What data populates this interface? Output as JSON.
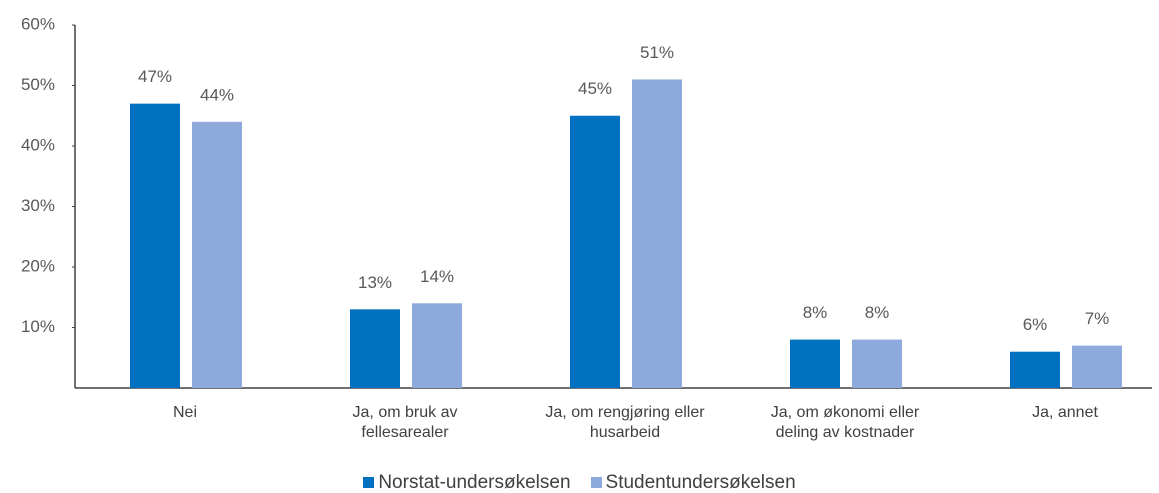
{
  "chart_data": {
    "type": "bar",
    "categories": [
      "Nei",
      "Ja, om bruk av\nfellesarealer",
      "Ja, om rengjøring eller\nhusarbeid",
      "Ja, om økonomi eller\ndeling av kostnader",
      "Ja, annet"
    ],
    "series": [
      {
        "name": "Norstat-undersøkelsen",
        "color": "#0070c0",
        "values": [
          47,
          13,
          45,
          8,
          6
        ],
        "value_labels": [
          "47%",
          "13%",
          "45%",
          "8%",
          "6%"
        ]
      },
      {
        "name": "Studentundersøkelsen",
        "color": "#8eaadc",
        "values": [
          44,
          14,
          51,
          8,
          7
        ],
        "value_labels": [
          "44%",
          "14%",
          "51%",
          "8%",
          "7%"
        ]
      }
    ],
    "ylim": [
      0,
      60
    ],
    "yticks": [
      {
        "value": 10,
        "label": "10%"
      },
      {
        "value": 20,
        "label": "20%"
      },
      {
        "value": 30,
        "label": "30%"
      },
      {
        "value": 40,
        "label": "40%"
      },
      {
        "value": 50,
        "label": "50%"
      },
      {
        "value": 60,
        "label": "60%"
      }
    ],
    "grid": false,
    "legend": "bottom"
  }
}
